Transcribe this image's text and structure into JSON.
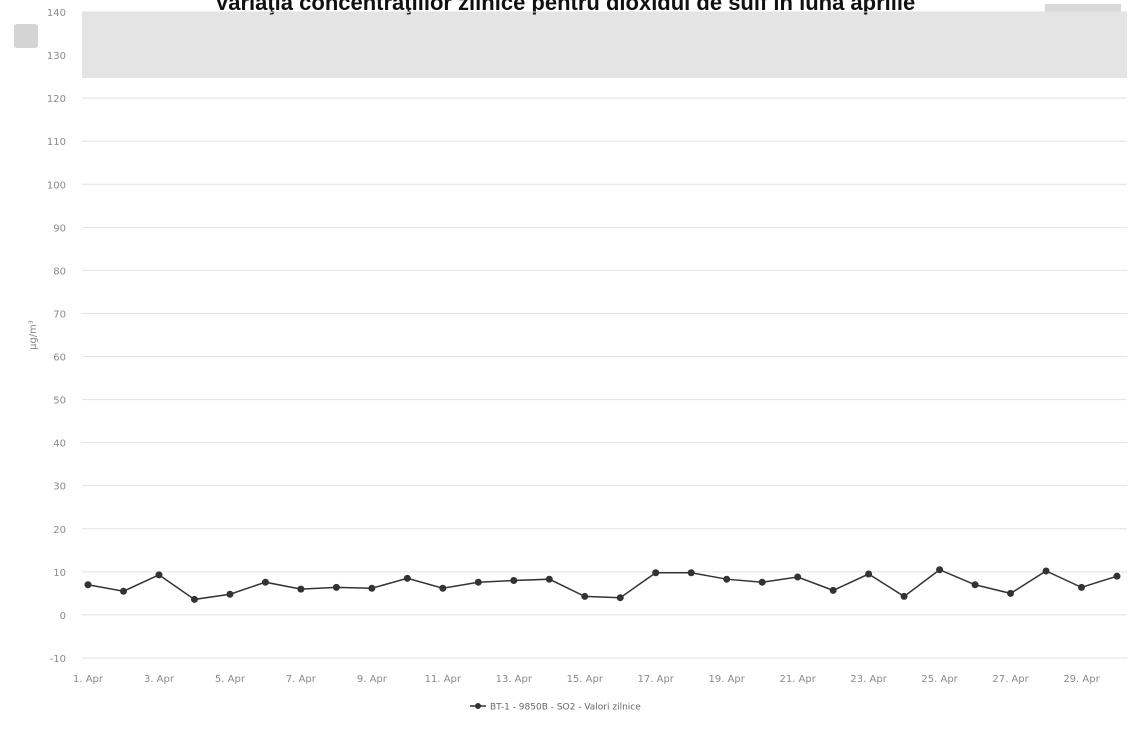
{
  "chart_data": {
    "type": "line",
    "title": "Variaţia concentraţiilor zilnice pentru dioxidul de sulf în luna aprilie",
    "y_label": "µg/m³",
    "categories": [
      "1. Apr",
      null,
      "3. Apr",
      null,
      "5. Apr",
      null,
      "7. Apr",
      null,
      "9. Apr",
      null,
      "11. Apr",
      null,
      "13. Apr",
      null,
      "15. Apr",
      null,
      "17. Apr",
      null,
      "19. Apr",
      null,
      "21. Apr",
      null,
      "23. Apr",
      null,
      "25. Apr",
      null,
      "27. Apr",
      null,
      "29. Apr",
      null
    ],
    "series": [
      {
        "name": "BT-1 - 9850B - SO2 - Valori zilnice",
        "color": "#333333",
        "values": [
          7,
          5.5,
          9.3,
          3.6,
          4.8,
          7.6,
          6,
          6.4,
          6.2,
          8.5,
          6.2,
          7.6,
          8,
          8.3,
          4.3,
          4,
          9.8,
          9.8,
          8.3,
          7.6,
          8.8,
          5.7,
          9.5,
          4.3,
          10.5,
          7,
          5,
          10.2,
          6.4,
          9
        ]
      }
    ],
    "ylim": [
      -10,
      140
    ],
    "yticks": [
      -10,
      0,
      10,
      20,
      30,
      40,
      50,
      60,
      70,
      80,
      90,
      100,
      110,
      120,
      130,
      140
    ],
    "grid": true,
    "legend": "bottom"
  }
}
